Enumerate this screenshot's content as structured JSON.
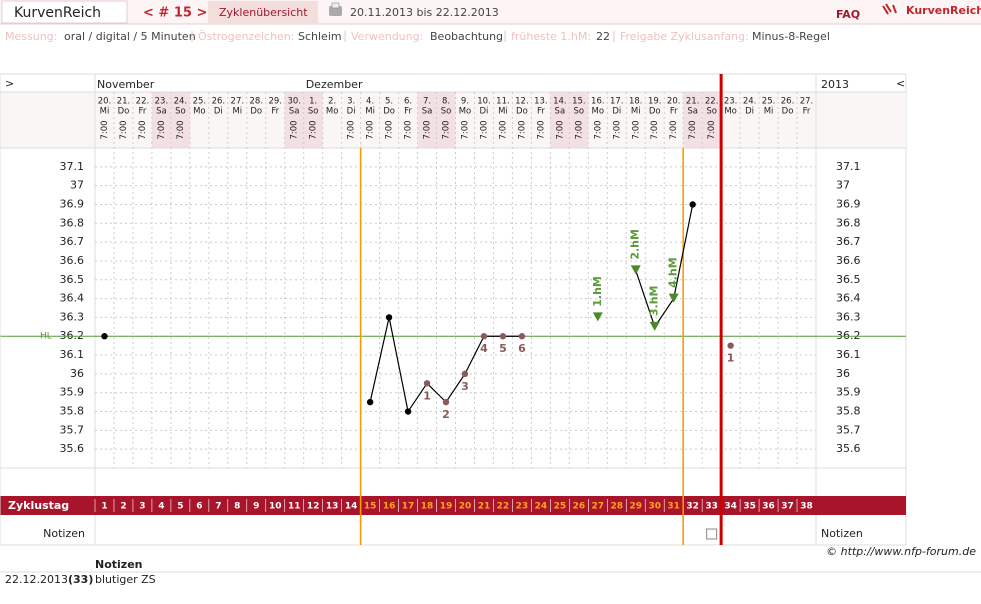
{
  "header": {
    "app_title": "KurvenReich",
    "cycle_nav": "< # 15 >",
    "overview": "Zyklenübersicht",
    "date_range": "20.11.2013 bis 22.12.2013",
    "faq": "FAQ",
    "logo": "KurvenReich"
  },
  "settings": [
    {
      "label": "Messung:",
      "value": "oral / digital / 5 Minuten"
    },
    {
      "label": "Östrogenzeichen:",
      "value": "Schleim"
    },
    {
      "label": "Verwendung:",
      "value": "Beobachtung"
    },
    {
      "label": "früheste 1.hM:",
      "value": "22"
    },
    {
      "label": "Freigabe Zyklusanfang:",
      "value": "Minus-8-Regel"
    }
  ],
  "chart_data": {
    "type": "line",
    "nav_left": ">",
    "nav_right": "<",
    "year": "2013",
    "month_labels": [
      "November",
      null,
      null,
      null,
      null,
      null,
      null,
      null,
      null,
      null,
      null,
      "Dezember",
      null,
      null,
      null,
      null,
      null,
      null,
      null,
      null,
      null,
      null,
      null,
      null,
      null,
      null,
      null,
      null,
      null,
      null,
      null,
      null,
      null,
      null,
      null,
      null,
      null,
      null
    ],
    "categories": [
      "20.",
      "21.",
      "22.",
      "23.",
      "24.",
      "25.",
      "26.",
      "27.",
      "28.",
      "29.",
      "30.",
      "1.",
      "2.",
      "3.",
      "4.",
      "5.",
      "6.",
      "7.",
      "8.",
      "9.",
      "10.",
      "11.",
      "12.",
      "13.",
      "14.",
      "15.",
      "16.",
      "17.",
      "18.",
      "19.",
      "20.",
      "21.",
      "22.",
      "23.",
      "24.",
      "25.",
      "26.",
      "27."
    ],
    "weekdays": [
      "Mi",
      "Do",
      "Fr",
      "Sa",
      "So",
      "Mo",
      "Di",
      "Mi",
      "Do",
      "Fr",
      "Sa",
      "So",
      "Mo",
      "Di",
      "Mi",
      "Do",
      "Fr",
      "Sa",
      "So",
      "Mo",
      "Di",
      "Mi",
      "Do",
      "Fr",
      "Sa",
      "So",
      "Mo",
      "Di",
      "Mi",
      "Do",
      "Fr",
      "Sa",
      "So",
      "Mo",
      "Di",
      "Mi",
      "Do",
      "Fr"
    ],
    "times": [
      "7:00",
      "7:00",
      "7:00",
      "7:00",
      "7:00",
      null,
      null,
      null,
      null,
      null,
      "7:00",
      "7:00",
      null,
      "7:00",
      "7:00",
      "7:00",
      "7:00",
      "7:00",
      "7:00",
      "7:00",
      "7:00",
      "7:00",
      "7:00",
      "7:00",
      "7:00",
      "7:00",
      "7:00",
      "7:00",
      "7:00",
      "7:00",
      "7:00",
      "7:00",
      "7:00",
      null,
      null,
      null,
      null,
      null
    ],
    "cycle_day_label": "Zyklustag",
    "cycle_days": [
      1,
      2,
      3,
      4,
      5,
      6,
      7,
      8,
      9,
      10,
      11,
      12,
      13,
      14,
      15,
      16,
      17,
      18,
      19,
      20,
      21,
      22,
      23,
      24,
      25,
      26,
      27,
      28,
      29,
      30,
      31,
      32,
      33,
      34,
      35,
      36,
      37,
      38
    ],
    "notes_label": "Notizen",
    "series": [
      {
        "name": "Temperatur",
        "color": "#000000",
        "values": [
          36.2,
          null,
          null,
          null,
          null,
          null,
          null,
          null,
          null,
          null,
          null,
          null,
          null,
          null,
          35.85,
          36.3,
          35.8,
          35.95,
          35.85,
          36.0,
          36.2,
          36.2,
          36.2,
          null,
          null,
          null,
          36.3,
          null,
          36.55,
          36.25,
          36.4,
          36.9,
          null,
          36.15,
          null,
          null,
          null,
          null
        ],
        "point_labels": [
          null,
          null,
          null,
          null,
          null,
          null,
          null,
          null,
          null,
          null,
          null,
          null,
          null,
          null,
          null,
          null,
          null,
          "1",
          "2",
          "3",
          "4",
          "5",
          "6",
          null,
          null,
          null,
          "1.hM",
          null,
          "2.hM",
          "3.hM",
          "4.hM",
          null,
          null,
          "1",
          null,
          null,
          null,
          null
        ]
      }
    ],
    "cover_line": {
      "label": "HL",
      "value": 36.2,
      "color": "#5a9a3a"
    },
    "vertical_lines": [
      {
        "before_day": 15,
        "color": "#ff9900"
      },
      {
        "before_day": 32,
        "color": "#ff9900"
      },
      {
        "before_day": 34,
        "color": "#cc0000"
      }
    ],
    "ylim": [
      35.5,
      37.2
    ],
    "yticks": [
      35.6,
      35.7,
      35.8,
      35.9,
      36,
      36.1,
      36.2,
      36.3,
      36.4,
      36.5,
      36.6,
      36.7,
      36.8,
      36.9,
      37,
      37.1
    ],
    "grid": true
  },
  "notes": {
    "title": "Notizen",
    "rows": [
      {
        "date": "22.12.2013",
        "cycle_day": "(33)",
        "text": "blutiger ZS"
      }
    ]
  },
  "copyright": "© http://www.nfp-forum.de"
}
